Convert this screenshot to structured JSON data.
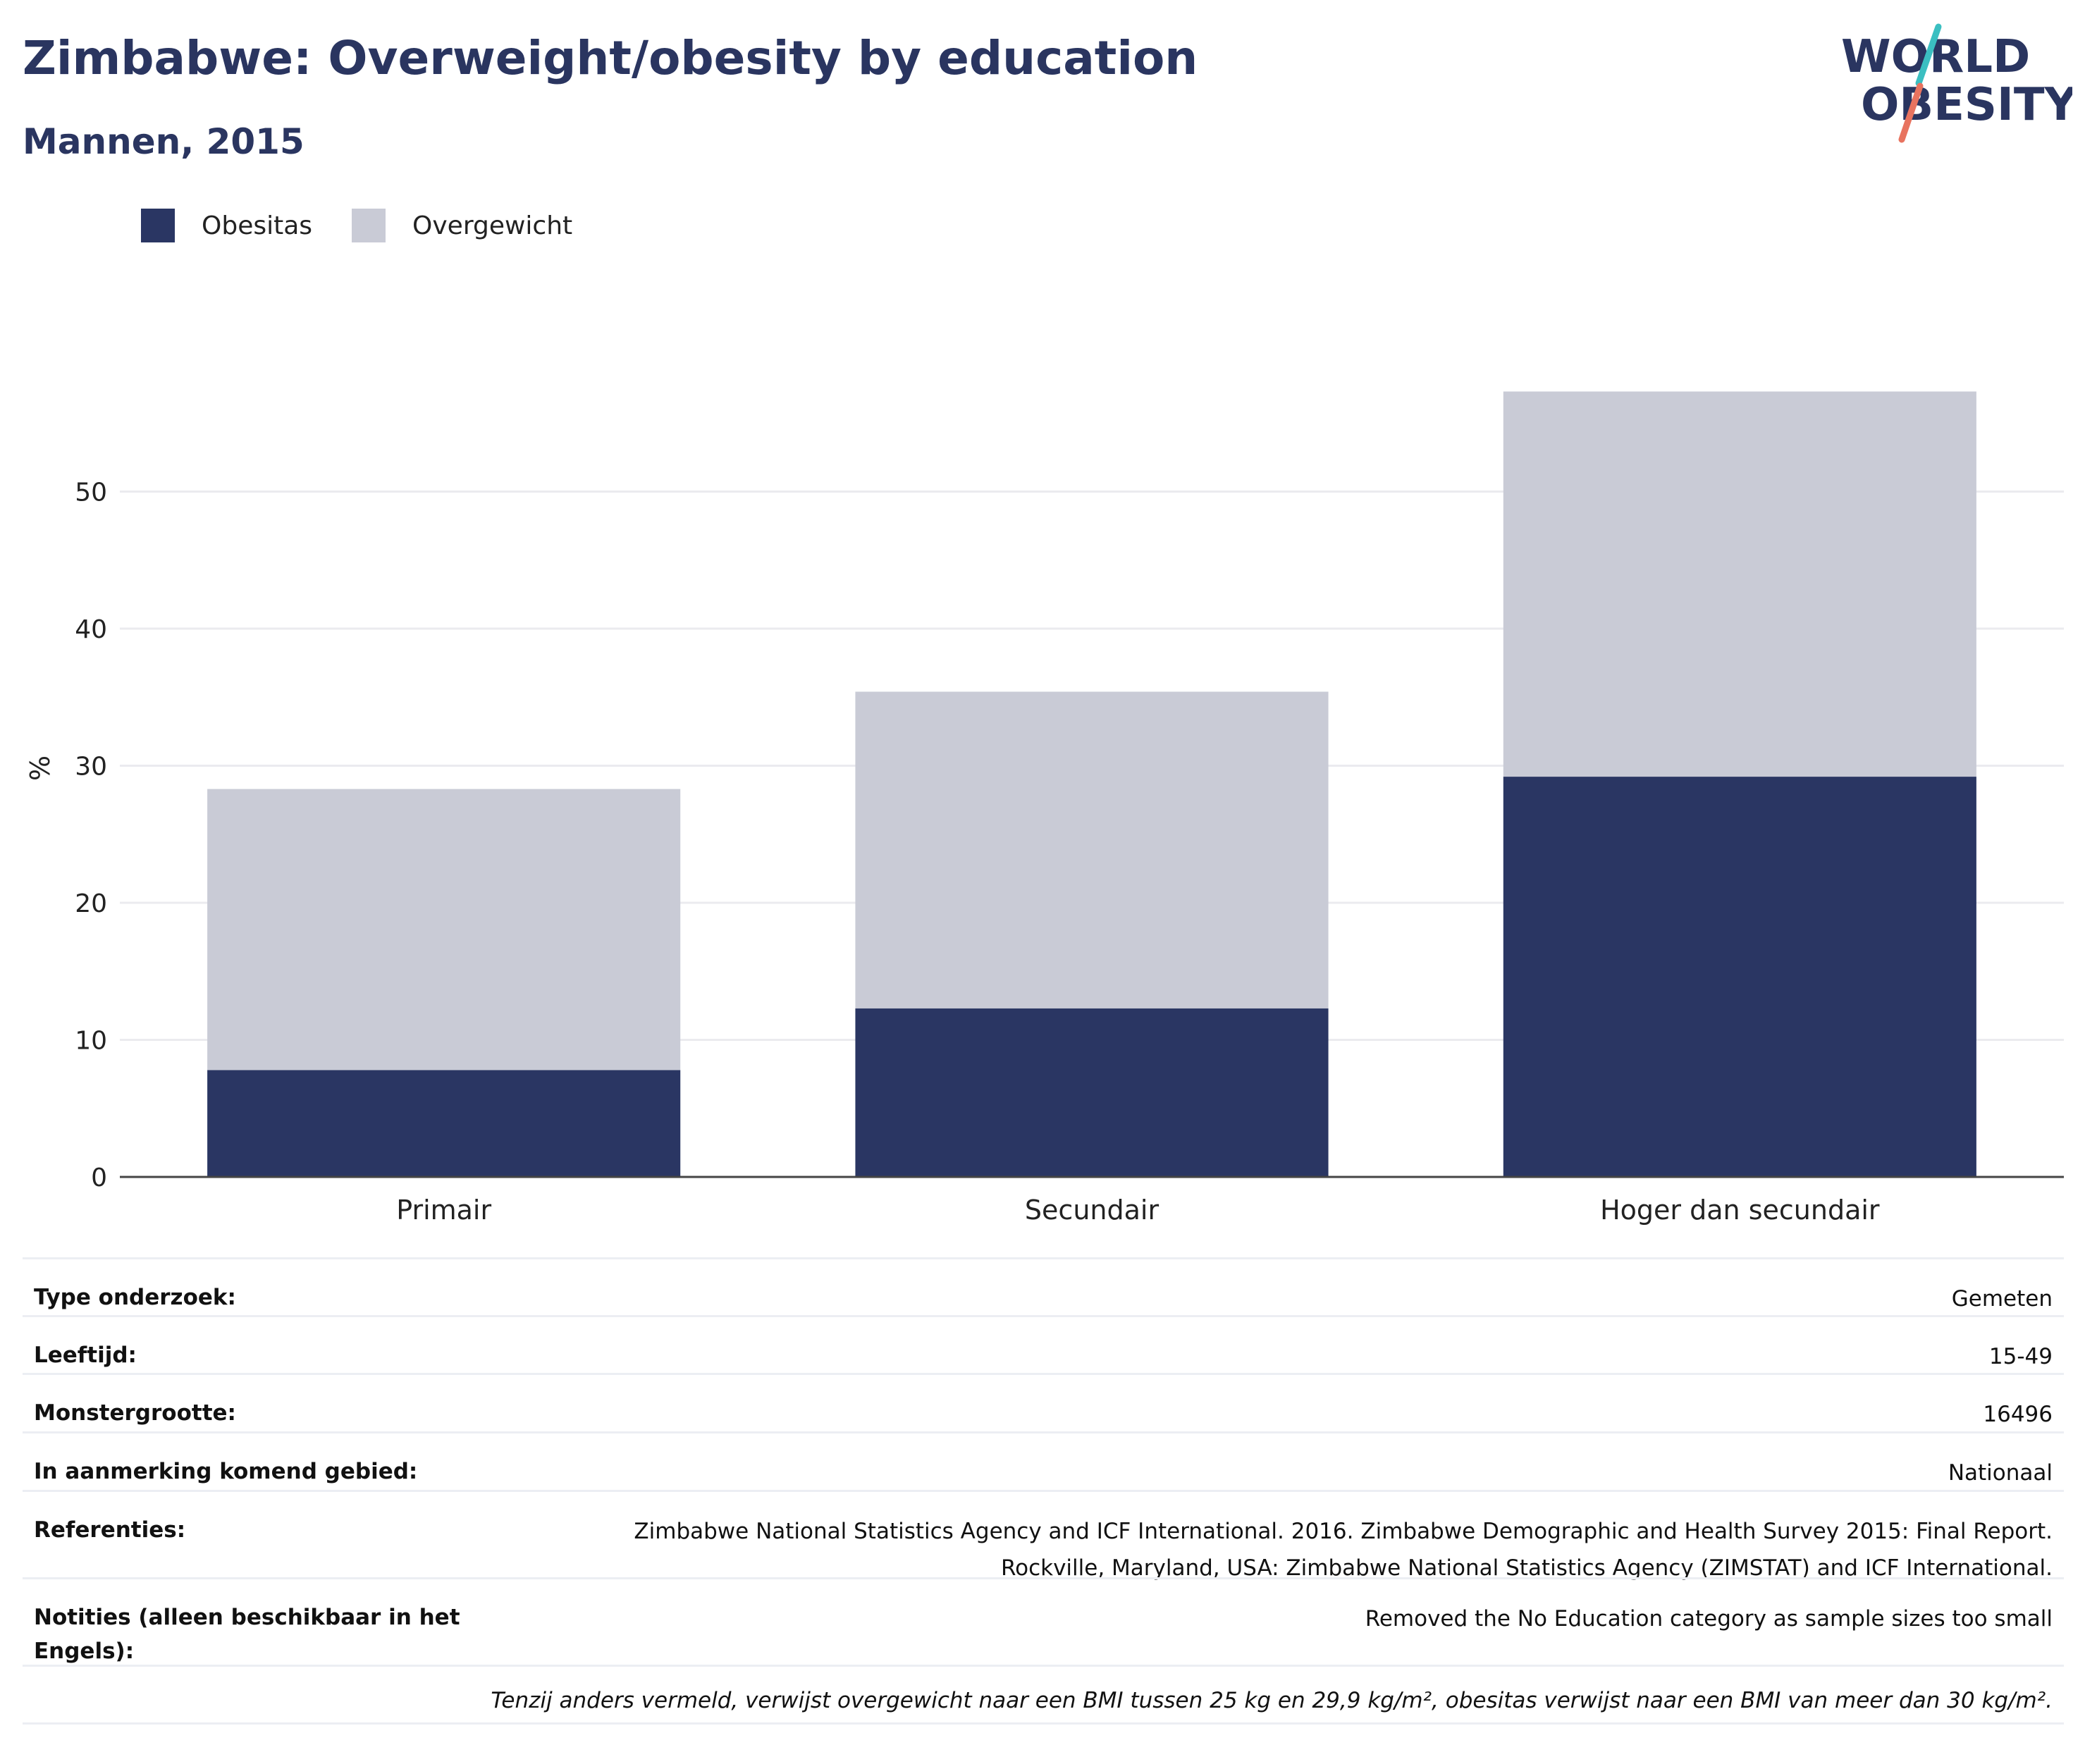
{
  "title": "Zimbabwe: Overweight/obesity by education",
  "subtitle": "Mannen, 2015",
  "logo": {
    "line1": "WORLD",
    "line2": "OBESITY"
  },
  "colors": {
    "obesitas": "#2a3663",
    "overgewicht": "#c9cbd6",
    "heading": "#2a3560",
    "logo_teal": "#3bbfc1",
    "logo_coral": "#e8735f"
  },
  "legend": [
    {
      "label": "Obesitas",
      "color": "#2a3663"
    },
    {
      "label": "Overgewicht",
      "color": "#c9cbd6"
    }
  ],
  "chart_data": {
    "type": "bar",
    "stacked": true,
    "categories": [
      "Primair",
      "Secundair",
      "Hoger dan secundair"
    ],
    "series": [
      {
        "name": "Obesitas",
        "values": [
          7.8,
          12.3,
          29.2
        ]
      },
      {
        "name": "Overgewicht",
        "values": [
          20.5,
          23.1,
          28.1
        ]
      }
    ],
    "ylabel": "%",
    "ylim": [
      0,
      60
    ],
    "yticks": [
      0,
      10,
      20,
      30,
      40,
      50
    ],
    "grid": true,
    "legend_position": "top-left"
  },
  "info": {
    "rows": [
      {
        "key": "Type onderzoek:",
        "value": "Gemeten"
      },
      {
        "key": "Leeftijd:",
        "value": "15-49"
      },
      {
        "key": "Monstergrootte:",
        "value": "16496"
      },
      {
        "key": "In aanmerking komend gebied:",
        "value": "Nationaal"
      },
      {
        "key": "Referenties:",
        "value": "Zimbabwe National Statistics Agency and ICF International. 2016. Zimbabwe Demographic and Health Survey 2015: Final Report.\nRockville, Maryland, USA: Zimbabwe National Statistics Agency (ZIMSTAT) and ICF International."
      },
      {
        "key": "Notities (alleen beschikbaar in het Engels):",
        "value": "Removed the No Education category as sample sizes too small"
      }
    ],
    "footnote": "Tenzij anders vermeld, verwijst overgewicht naar een BMI tussen 25 kg en 29,9 kg/m², obesitas verwijst naar een BMI van meer dan 30 kg/m²."
  }
}
